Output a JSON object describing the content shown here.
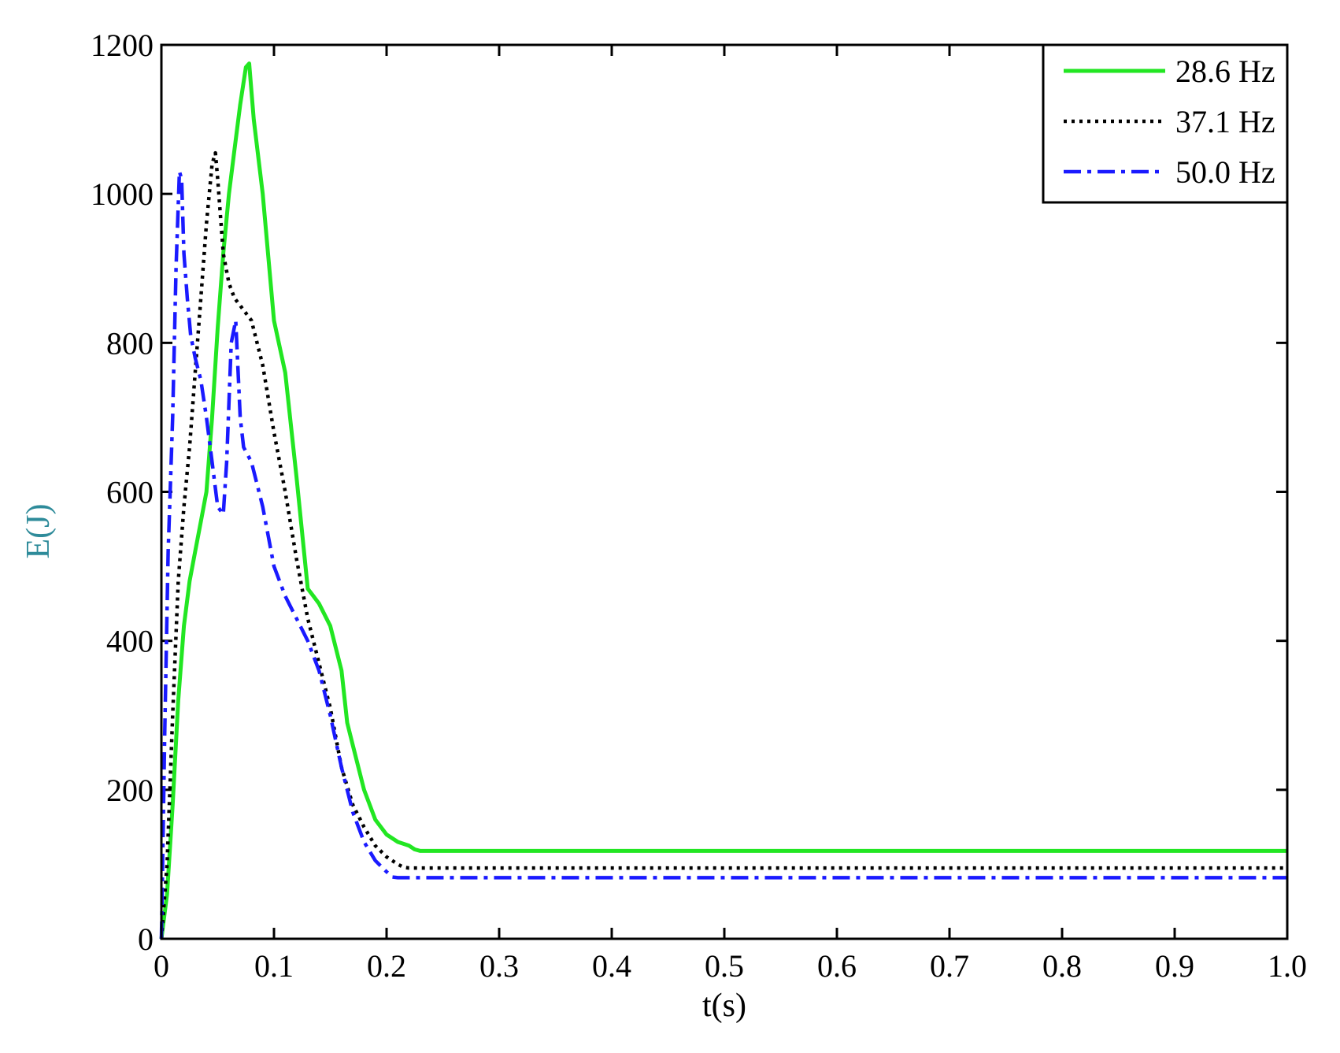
{
  "chart_data": {
    "type": "line",
    "title": "",
    "xlabel": "t(s)",
    "ylabel": "E(J)",
    "xlim": [
      0,
      1.0
    ],
    "ylim": [
      0,
      1200
    ],
    "xticks": [
      0,
      0.1,
      0.2,
      0.3,
      0.4,
      0.5,
      0.6,
      0.7,
      0.8,
      0.9,
      1.0
    ],
    "xtick_labels": [
      "0",
      "0.1",
      "0.2",
      "0.3",
      "0.4",
      "0.5",
      "0.6",
      "0.7",
      "0.8",
      "0.9",
      "1.0"
    ],
    "yticks": [
      0,
      200,
      400,
      600,
      800,
      1000,
      1200
    ],
    "ytick_labels": [
      "0",
      "200",
      "400",
      "600",
      "800",
      "1000",
      "1200"
    ],
    "grid": false,
    "legend_position": "top-right",
    "axis_label_color": "#2e8b9a",
    "series": [
      {
        "name": "28.6 Hz",
        "color": "#22e622",
        "style": "solid",
        "x": [
          0,
          0.005,
          0.01,
          0.015,
          0.02,
          0.025,
          0.03,
          0.035,
          0.04,
          0.045,
          0.05,
          0.055,
          0.06,
          0.065,
          0.07,
          0.075,
          0.078,
          0.082,
          0.09,
          0.1,
          0.11,
          0.12,
          0.13,
          0.135,
          0.14,
          0.15,
          0.16,
          0.165,
          0.17,
          0.18,
          0.19,
          0.2,
          0.21,
          0.22,
          0.225,
          0.23,
          0.3,
          0.4,
          0.5,
          0.6,
          0.7,
          0.8,
          0.9,
          1.0
        ],
        "y": [
          0,
          60,
          180,
          320,
          420,
          480,
          520,
          560,
          600,
          700,
          820,
          920,
          1000,
          1060,
          1120,
          1170,
          1175,
          1100,
          1000,
          830,
          760,
          620,
          470,
          460,
          450,
          420,
          360,
          290,
          260,
          200,
          160,
          140,
          130,
          125,
          120,
          118,
          118,
          118,
          118,
          118,
          118,
          118,
          118,
          118
        ]
      },
      {
        "name": "37.1 Hz",
        "color": "#000000",
        "style": "dotted",
        "x": [
          0,
          0.005,
          0.01,
          0.015,
          0.02,
          0.025,
          0.03,
          0.035,
          0.04,
          0.045,
          0.048,
          0.05,
          0.055,
          0.06,
          0.065,
          0.07,
          0.08,
          0.09,
          0.1,
          0.11,
          0.12,
          0.13,
          0.14,
          0.15,
          0.16,
          0.17,
          0.18,
          0.19,
          0.2,
          0.21,
          0.215,
          0.22,
          0.3,
          0.4,
          0.5,
          0.6,
          0.7,
          0.8,
          0.9,
          1.0
        ],
        "y": [
          0,
          100,
          300,
          480,
          580,
          660,
          760,
          860,
          960,
          1040,
          1055,
          1020,
          920,
          880,
          860,
          850,
          830,
          770,
          680,
          600,
          510,
          430,
          370,
          310,
          230,
          180,
          150,
          125,
          110,
          100,
          96,
          95,
          95,
          95,
          95,
          95,
          95,
          95,
          95,
          95
        ]
      },
      {
        "name": "50.0 Hz",
        "color": "#1a1aff",
        "style": "dashdot",
        "x": [
          0,
          0.003,
          0.006,
          0.01,
          0.013,
          0.016,
          0.018,
          0.02,
          0.023,
          0.026,
          0.03,
          0.035,
          0.04,
          0.045,
          0.05,
          0.055,
          0.058,
          0.062,
          0.066,
          0.07,
          0.073,
          0.08,
          0.09,
          0.1,
          0.11,
          0.12,
          0.13,
          0.14,
          0.15,
          0.16,
          0.17,
          0.18,
          0.19,
          0.2,
          0.205,
          0.21,
          0.3,
          0.4,
          0.5,
          0.6,
          0.7,
          0.8,
          0.9,
          1.0
        ],
        "y": [
          0,
          280,
          520,
          700,
          900,
          1030,
          1020,
          920,
          860,
          810,
          780,
          750,
          700,
          640,
          580,
          570,
          640,
          800,
          830,
          700,
          660,
          640,
          580,
          500,
          460,
          430,
          400,
          360,
          300,
          230,
          170,
          130,
          105,
          90,
          83,
          82,
          82,
          82,
          82,
          82,
          82,
          82,
          82,
          82
        ]
      }
    ]
  }
}
